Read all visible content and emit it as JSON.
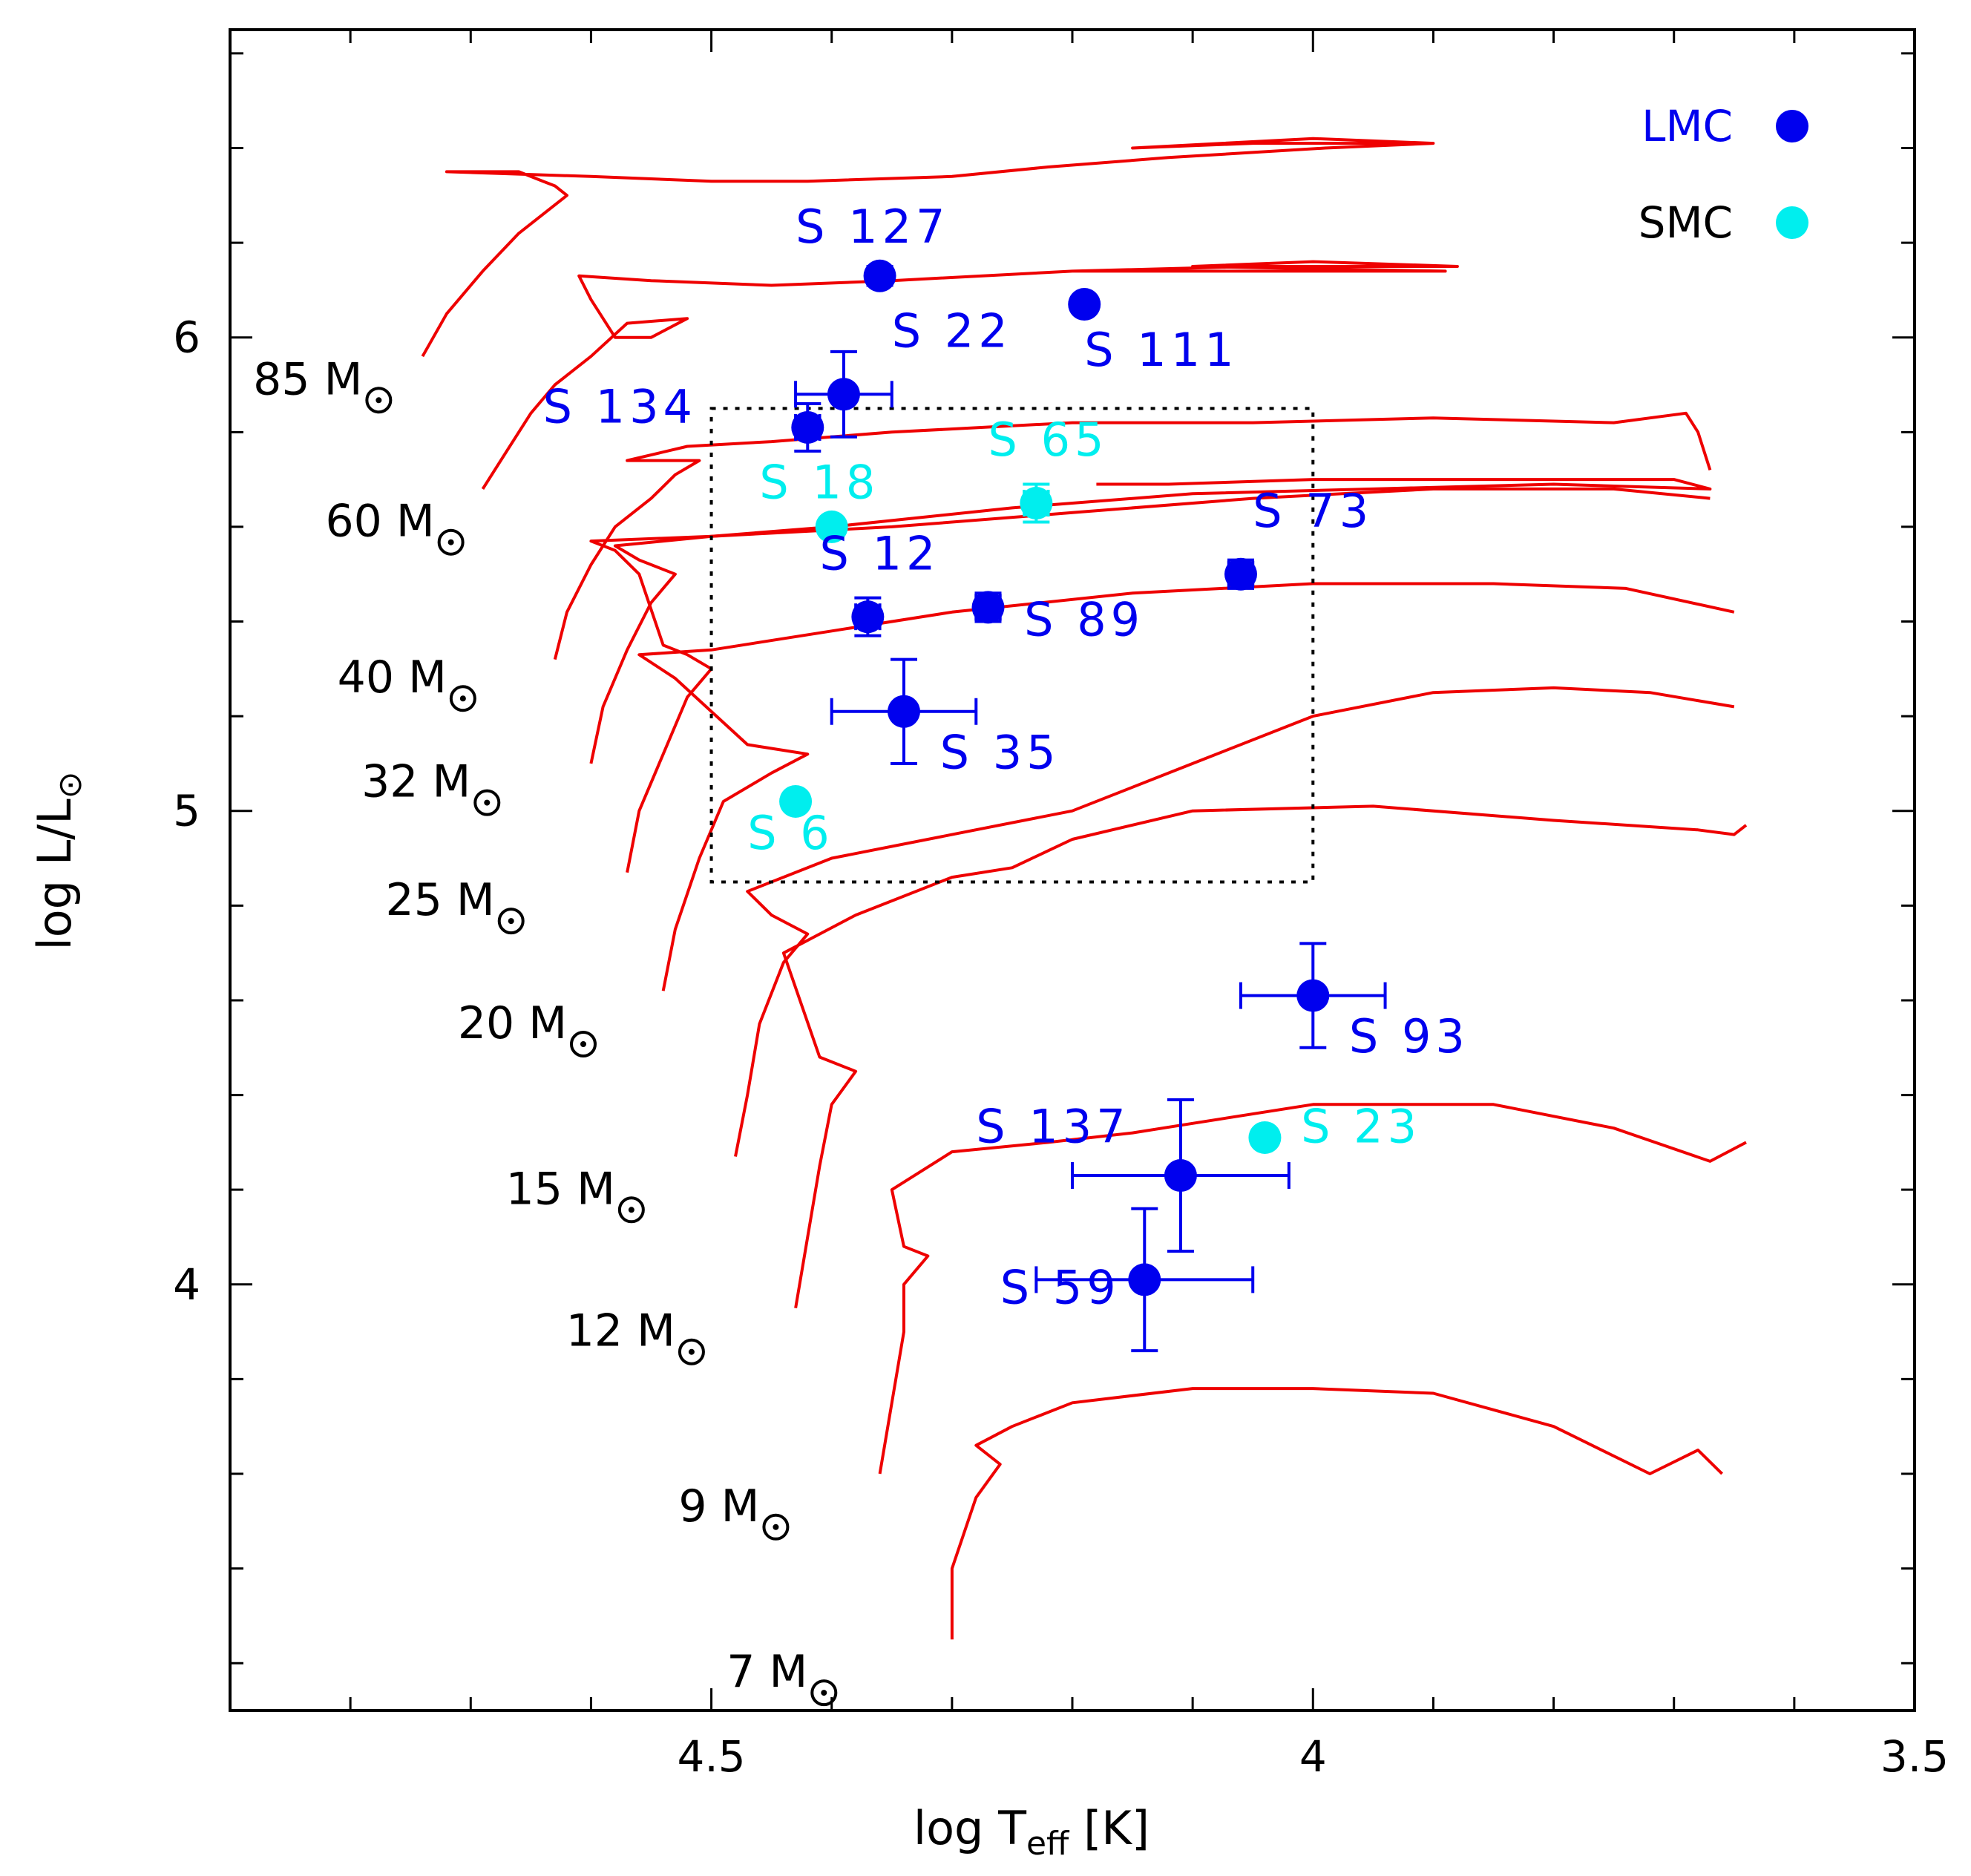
{
  "chart_data": {
    "type": "scatter",
    "title": "",
    "xlabel": {
      "main": "log T",
      "sub": "eff",
      "unit": " [K]"
    },
    "ylabel": {
      "main": "log L/L",
      "sub": "⊙"
    },
    "xlim": [
      4.9,
      3.5
    ],
    "ylim": [
      3.1,
      6.65
    ],
    "x_ticks": [
      4.5,
      4.0,
      3.5
    ],
    "x_tick_labels": [
      "4.5",
      "4",
      "3.5"
    ],
    "y_ticks": [
      4,
      5,
      6
    ],
    "y_tick_labels": [
      "4",
      "5",
      "6"
    ],
    "colors": {
      "lmc": "#0000ee",
      "smc": "#00eeee",
      "tracks": "#ee0000",
      "axes": "#000000"
    },
    "legend": [
      {
        "label": "LMC",
        "color": "#0000ee",
        "series": "lmc"
      },
      {
        "label": "SMC",
        "color": "#00eeee",
        "series": "smc"
      }
    ],
    "box": {
      "x": [
        4.5,
        4.0
      ],
      "y": [
        4.85,
        5.85
      ],
      "style": "dotted"
    },
    "stars": [
      {
        "name": "S 127",
        "series": "lmc",
        "x": 4.36,
        "y": 6.13,
        "xerr": 0.0,
        "yerr": 0.02,
        "label_x": 4.43,
        "label_y": 6.2
      },
      {
        "name": "S 111",
        "series": "lmc",
        "x": 4.19,
        "y": 6.07,
        "xerr": 0.0,
        "yerr": 0.0,
        "label_x": 4.19,
        "label_y": 5.94
      },
      {
        "name": "S 22",
        "series": "lmc",
        "x": 4.39,
        "y": 5.88,
        "xerr": 0.04,
        "yerr": 0.09,
        "label_x": 4.35,
        "label_y": 5.98
      },
      {
        "name": "S 134",
        "series": "lmc",
        "x": 4.42,
        "y": 5.81,
        "xerr": 0.01,
        "yerr": 0.05,
        "label_x": 4.64,
        "label_y": 5.82
      },
      {
        "name": "S 18",
        "series": "smc",
        "x": 4.4,
        "y": 5.6,
        "xerr": 0.0,
        "yerr": 0.0,
        "label_x": 4.46,
        "label_y": 5.66
      },
      {
        "name": "S 65",
        "series": "smc",
        "x": 4.23,
        "y": 5.65,
        "xerr": 0.01,
        "yerr": 0.04,
        "label_x": 4.27,
        "label_y": 5.75
      },
      {
        "name": "S 73",
        "series": "lmc",
        "x": 4.06,
        "y": 5.5,
        "xerr": 0.01,
        "yerr": 0.03,
        "label_x": 4.05,
        "label_y": 5.6
      },
      {
        "name": "S 12",
        "series": "lmc",
        "x": 4.37,
        "y": 5.41,
        "xerr": 0.01,
        "yerr": 0.04,
        "label_x": 4.41,
        "label_y": 5.51
      },
      {
        "name": "S 89",
        "series": "lmc",
        "x": 4.27,
        "y": 5.43,
        "xerr": 0.01,
        "yerr": 0.03,
        "label_x": 4.24,
        "label_y": 5.37
      },
      {
        "name": "S 35",
        "series": "lmc",
        "x": 4.34,
        "y": 5.21,
        "xerr": 0.06,
        "yerr": 0.11,
        "label_x": 4.31,
        "label_y": 5.09
      },
      {
        "name": "S 6",
        "series": "smc",
        "x": 4.43,
        "y": 5.02,
        "xerr": 0.0,
        "yerr": 0.0,
        "label_x": 4.47,
        "label_y": 4.92
      },
      {
        "name": "S 93",
        "series": "lmc",
        "x": 4.0,
        "y": 4.61,
        "xerr": 0.06,
        "yerr": 0.11,
        "label_x": 3.97,
        "label_y": 4.49
      },
      {
        "name": "S 137",
        "series": "lmc",
        "x": 4.11,
        "y": 4.23,
        "xerr": 0.09,
        "yerr": 0.16,
        "label_x": 4.28,
        "label_y": 4.3
      },
      {
        "name": "S 23",
        "series": "smc",
        "x": 4.04,
        "y": 4.31,
        "xerr": 0.0,
        "yerr": 0.0,
        "label_x": 4.01,
        "label_y": 4.3
      },
      {
        "name": "S 59",
        "series": "lmc",
        "x": 4.14,
        "y": 4.01,
        "xerr": 0.09,
        "yerr": 0.15,
        "label_x": 4.26,
        "label_y": 3.96
      }
    ],
    "tracks": [
      {
        "mass": "85 M",
        "label_x": 4.79,
        "label_y": 5.88,
        "points": [
          [
            4.74,
            5.96
          ],
          [
            4.72,
            6.05
          ],
          [
            4.69,
            6.14
          ],
          [
            4.66,
            6.22
          ],
          [
            4.63,
            6.28
          ],
          [
            4.62,
            6.3
          ],
          [
            4.63,
            6.32
          ],
          [
            4.64,
            6.33
          ],
          [
            4.66,
            6.35
          ],
          [
            4.72,
            6.35
          ],
          [
            4.6,
            6.34
          ],
          [
            4.5,
            6.33
          ],
          [
            4.42,
            6.33
          ],
          [
            4.3,
            6.34
          ],
          [
            4.22,
            6.36
          ],
          [
            4.12,
            6.38
          ],
          [
            3.99,
            6.4
          ],
          [
            3.9,
            6.41
          ],
          [
            4.0,
            6.42
          ],
          [
            4.15,
            6.4
          ],
          [
            4.05,
            6.41
          ],
          [
            3.92,
            6.41
          ]
        ]
      },
      {
        "mass": "60 M",
        "label_x": 4.73,
        "label_y": 5.58,
        "points": [
          [
            4.69,
            5.68
          ],
          [
            4.67,
            5.76
          ],
          [
            4.65,
            5.84
          ],
          [
            4.63,
            5.9
          ],
          [
            4.6,
            5.96
          ],
          [
            4.57,
            6.03
          ],
          [
            4.52,
            6.04
          ],
          [
            4.55,
            6.0
          ],
          [
            4.58,
            6.0
          ],
          [
            4.6,
            6.08
          ],
          [
            4.61,
            6.13
          ],
          [
            4.55,
            6.12
          ],
          [
            4.45,
            6.11
          ],
          [
            4.35,
            6.12
          ],
          [
            4.2,
            6.14
          ],
          [
            4.05,
            6.15
          ],
          [
            3.88,
            6.15
          ],
          [
            4.0,
            6.16
          ],
          [
            4.1,
            6.15
          ],
          [
            3.89,
            6.14
          ],
          [
            4.2,
            6.14
          ]
        ]
      },
      {
        "mass": "40 M",
        "label_x": 4.72,
        "label_y": 5.25,
        "points": [
          [
            4.63,
            5.32
          ],
          [
            4.62,
            5.42
          ],
          [
            4.6,
            5.52
          ],
          [
            4.58,
            5.6
          ],
          [
            4.55,
            5.66
          ],
          [
            4.53,
            5.71
          ],
          [
            4.51,
            5.74
          ],
          [
            4.57,
            5.74
          ],
          [
            4.52,
            5.77
          ],
          [
            4.45,
            5.78
          ],
          [
            4.35,
            5.8
          ],
          [
            4.2,
            5.82
          ],
          [
            4.05,
            5.82
          ],
          [
            3.9,
            5.83
          ],
          [
            3.75,
            5.82
          ],
          [
            3.69,
            5.84
          ],
          [
            3.68,
            5.8
          ],
          [
            3.67,
            5.72
          ]
        ]
      },
      {
        "mass": "32 M",
        "label_x": 4.7,
        "label_y": 5.03,
        "points": [
          [
            4.6,
            5.1
          ],
          [
            4.59,
            5.22
          ],
          [
            4.57,
            5.34
          ],
          [
            4.55,
            5.44
          ],
          [
            4.53,
            5.5
          ],
          [
            4.56,
            5.53
          ],
          [
            4.58,
            5.56
          ],
          [
            4.5,
            5.58
          ],
          [
            4.4,
            5.6
          ],
          [
            4.25,
            5.64
          ],
          [
            4.1,
            5.67
          ],
          [
            3.95,
            5.68
          ],
          [
            3.8,
            5.69
          ],
          [
            3.67,
            5.68
          ],
          [
            3.7,
            5.7
          ],
          [
            3.85,
            5.7
          ],
          [
            4.0,
            5.7
          ],
          [
            4.12,
            5.69
          ],
          [
            4.18,
            5.69
          ]
        ]
      },
      {
        "mass": "25 M",
        "label_x": 4.68,
        "label_y": 4.78,
        "points": [
          [
            4.57,
            4.87
          ],
          [
            4.56,
            5.0
          ],
          [
            4.54,
            5.12
          ],
          [
            4.52,
            5.24
          ],
          [
            4.5,
            5.3
          ],
          [
            4.52,
            5.33
          ],
          [
            4.54,
            5.35
          ],
          [
            4.56,
            5.5
          ],
          [
            4.58,
            5.55
          ],
          [
            4.6,
            5.57
          ],
          [
            4.5,
            5.58
          ],
          [
            4.35,
            5.6
          ],
          [
            4.2,
            5.63
          ],
          [
            4.05,
            5.66
          ],
          [
            3.9,
            5.68
          ],
          [
            3.75,
            5.68
          ],
          [
            3.67,
            5.66
          ]
        ]
      },
      {
        "mass": "20 M",
        "label_x": 4.62,
        "label_y": 4.52,
        "points": [
          [
            4.54,
            4.62
          ],
          [
            4.53,
            4.75
          ],
          [
            4.51,
            4.9
          ],
          [
            4.49,
            5.02
          ],
          [
            4.45,
            5.08
          ],
          [
            4.42,
            5.12
          ],
          [
            4.47,
            5.14
          ],
          [
            4.53,
            5.28
          ],
          [
            4.56,
            5.33
          ],
          [
            4.5,
            5.34
          ],
          [
            4.4,
            5.38
          ],
          [
            4.3,
            5.42
          ],
          [
            4.15,
            5.46
          ],
          [
            4.0,
            5.48
          ],
          [
            3.85,
            5.48
          ],
          [
            3.74,
            5.47
          ],
          [
            3.65,
            5.42
          ]
        ]
      },
      {
        "mass": "15 M",
        "label_x": 4.58,
        "label_y": 4.17,
        "points": [
          [
            4.48,
            4.27
          ],
          [
            4.47,
            4.4
          ],
          [
            4.46,
            4.55
          ],
          [
            4.44,
            4.68
          ],
          [
            4.42,
            4.74
          ],
          [
            4.45,
            4.78
          ],
          [
            4.47,
            4.83
          ],
          [
            4.4,
            4.9
          ],
          [
            4.3,
            4.95
          ],
          [
            4.2,
            5.0
          ],
          [
            4.1,
            5.1
          ],
          [
            4.0,
            5.2
          ],
          [
            3.9,
            5.25
          ],
          [
            3.8,
            5.26
          ],
          [
            3.72,
            5.25
          ],
          [
            3.65,
            5.22
          ]
        ]
      },
      {
        "mass": "12 M",
        "label_x": 4.53,
        "label_y": 3.87,
        "points": [
          [
            4.43,
            3.95
          ],
          [
            4.42,
            4.1
          ],
          [
            4.41,
            4.25
          ],
          [
            4.4,
            4.38
          ],
          [
            4.38,
            4.45
          ],
          [
            4.41,
            4.48
          ],
          [
            4.44,
            4.7
          ],
          [
            4.38,
            4.78
          ],
          [
            4.3,
            4.86
          ],
          [
            4.25,
            4.88
          ],
          [
            4.2,
            4.94
          ],
          [
            4.1,
            5.0
          ],
          [
            3.95,
            5.01
          ],
          [
            3.8,
            4.98
          ],
          [
            3.68,
            4.96
          ],
          [
            3.65,
            4.95
          ],
          [
            3.64,
            4.97
          ]
        ]
      },
      {
        "mass": "9 M",
        "label_x": 4.46,
        "label_y": 3.5,
        "points": [
          [
            4.36,
            3.6
          ],
          [
            4.35,
            3.75
          ],
          [
            4.34,
            3.9
          ],
          [
            4.34,
            4.0
          ],
          [
            4.32,
            4.06
          ],
          [
            4.34,
            4.08
          ],
          [
            4.35,
            4.2
          ],
          [
            4.3,
            4.28
          ],
          [
            4.22,
            4.3
          ],
          [
            4.15,
            4.32
          ],
          [
            4.1,
            4.34
          ],
          [
            4.0,
            4.38
          ],
          [
            3.95,
            4.38
          ],
          [
            3.85,
            4.38
          ],
          [
            3.75,
            4.33
          ],
          [
            3.67,
            4.26
          ],
          [
            3.64,
            4.3
          ]
        ]
      },
      {
        "mass": "7 M",
        "label_x": 4.42,
        "label_y": 3.15,
        "points": [
          [
            4.3,
            3.25
          ],
          [
            4.3,
            3.4
          ],
          [
            4.28,
            3.55
          ],
          [
            4.26,
            3.62
          ],
          [
            4.28,
            3.66
          ],
          [
            4.25,
            3.7
          ],
          [
            4.2,
            3.75
          ],
          [
            4.1,
            3.78
          ],
          [
            4.0,
            3.78
          ],
          [
            3.9,
            3.77
          ],
          [
            3.8,
            3.7
          ],
          [
            3.72,
            3.6
          ],
          [
            3.68,
            3.65
          ],
          [
            3.66,
            3.6
          ]
        ]
      }
    ]
  }
}
